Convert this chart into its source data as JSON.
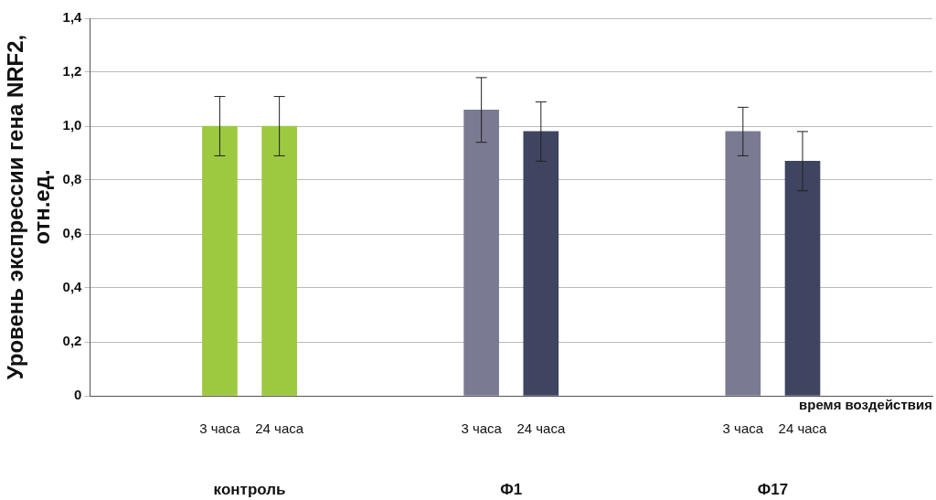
{
  "chart_data": {
    "type": "bar",
    "categories": [
      "3 часа",
      "24 часа",
      "3 часа",
      "24 часа",
      "3 часа",
      "24 часа"
    ],
    "values": [
      1.0,
      1.0,
      1.06,
      0.98,
      0.98,
      0.87
    ],
    "errors": [
      0.11,
      0.11,
      0.12,
      0.11,
      0.09,
      0.11
    ],
    "colors": [
      "#9dc940",
      "#9dc940",
      "#7b7a93",
      "#3f4560",
      "#7b7a93",
      "#3f4560"
    ],
    "ylabel": "Уровень экспрессии гена NRF2,\nотн.ед.",
    "xlabel": "время воздействия",
    "annotations": [
      "контроль",
      "Ф1",
      "Ф17"
    ],
    "ylim": [
      0,
      1.4
    ],
    "yticks": [
      0,
      {
        "value": 0.2,
        "label": "0,2"
      },
      {
        "value": 0.4,
        "label": "0,4"
      },
      {
        "value": 0.6,
        "label": "0,6"
      },
      {
        "value": 0.8,
        "label": "0,8"
      },
      {
        "value": 1.0,
        "label": "1,0"
      },
      {
        "value": 1.2,
        "label": "1,2"
      },
      {
        "value": 1.4,
        "label": "1,4"
      }
    ],
    "grid": "y",
    "legend": false
  }
}
